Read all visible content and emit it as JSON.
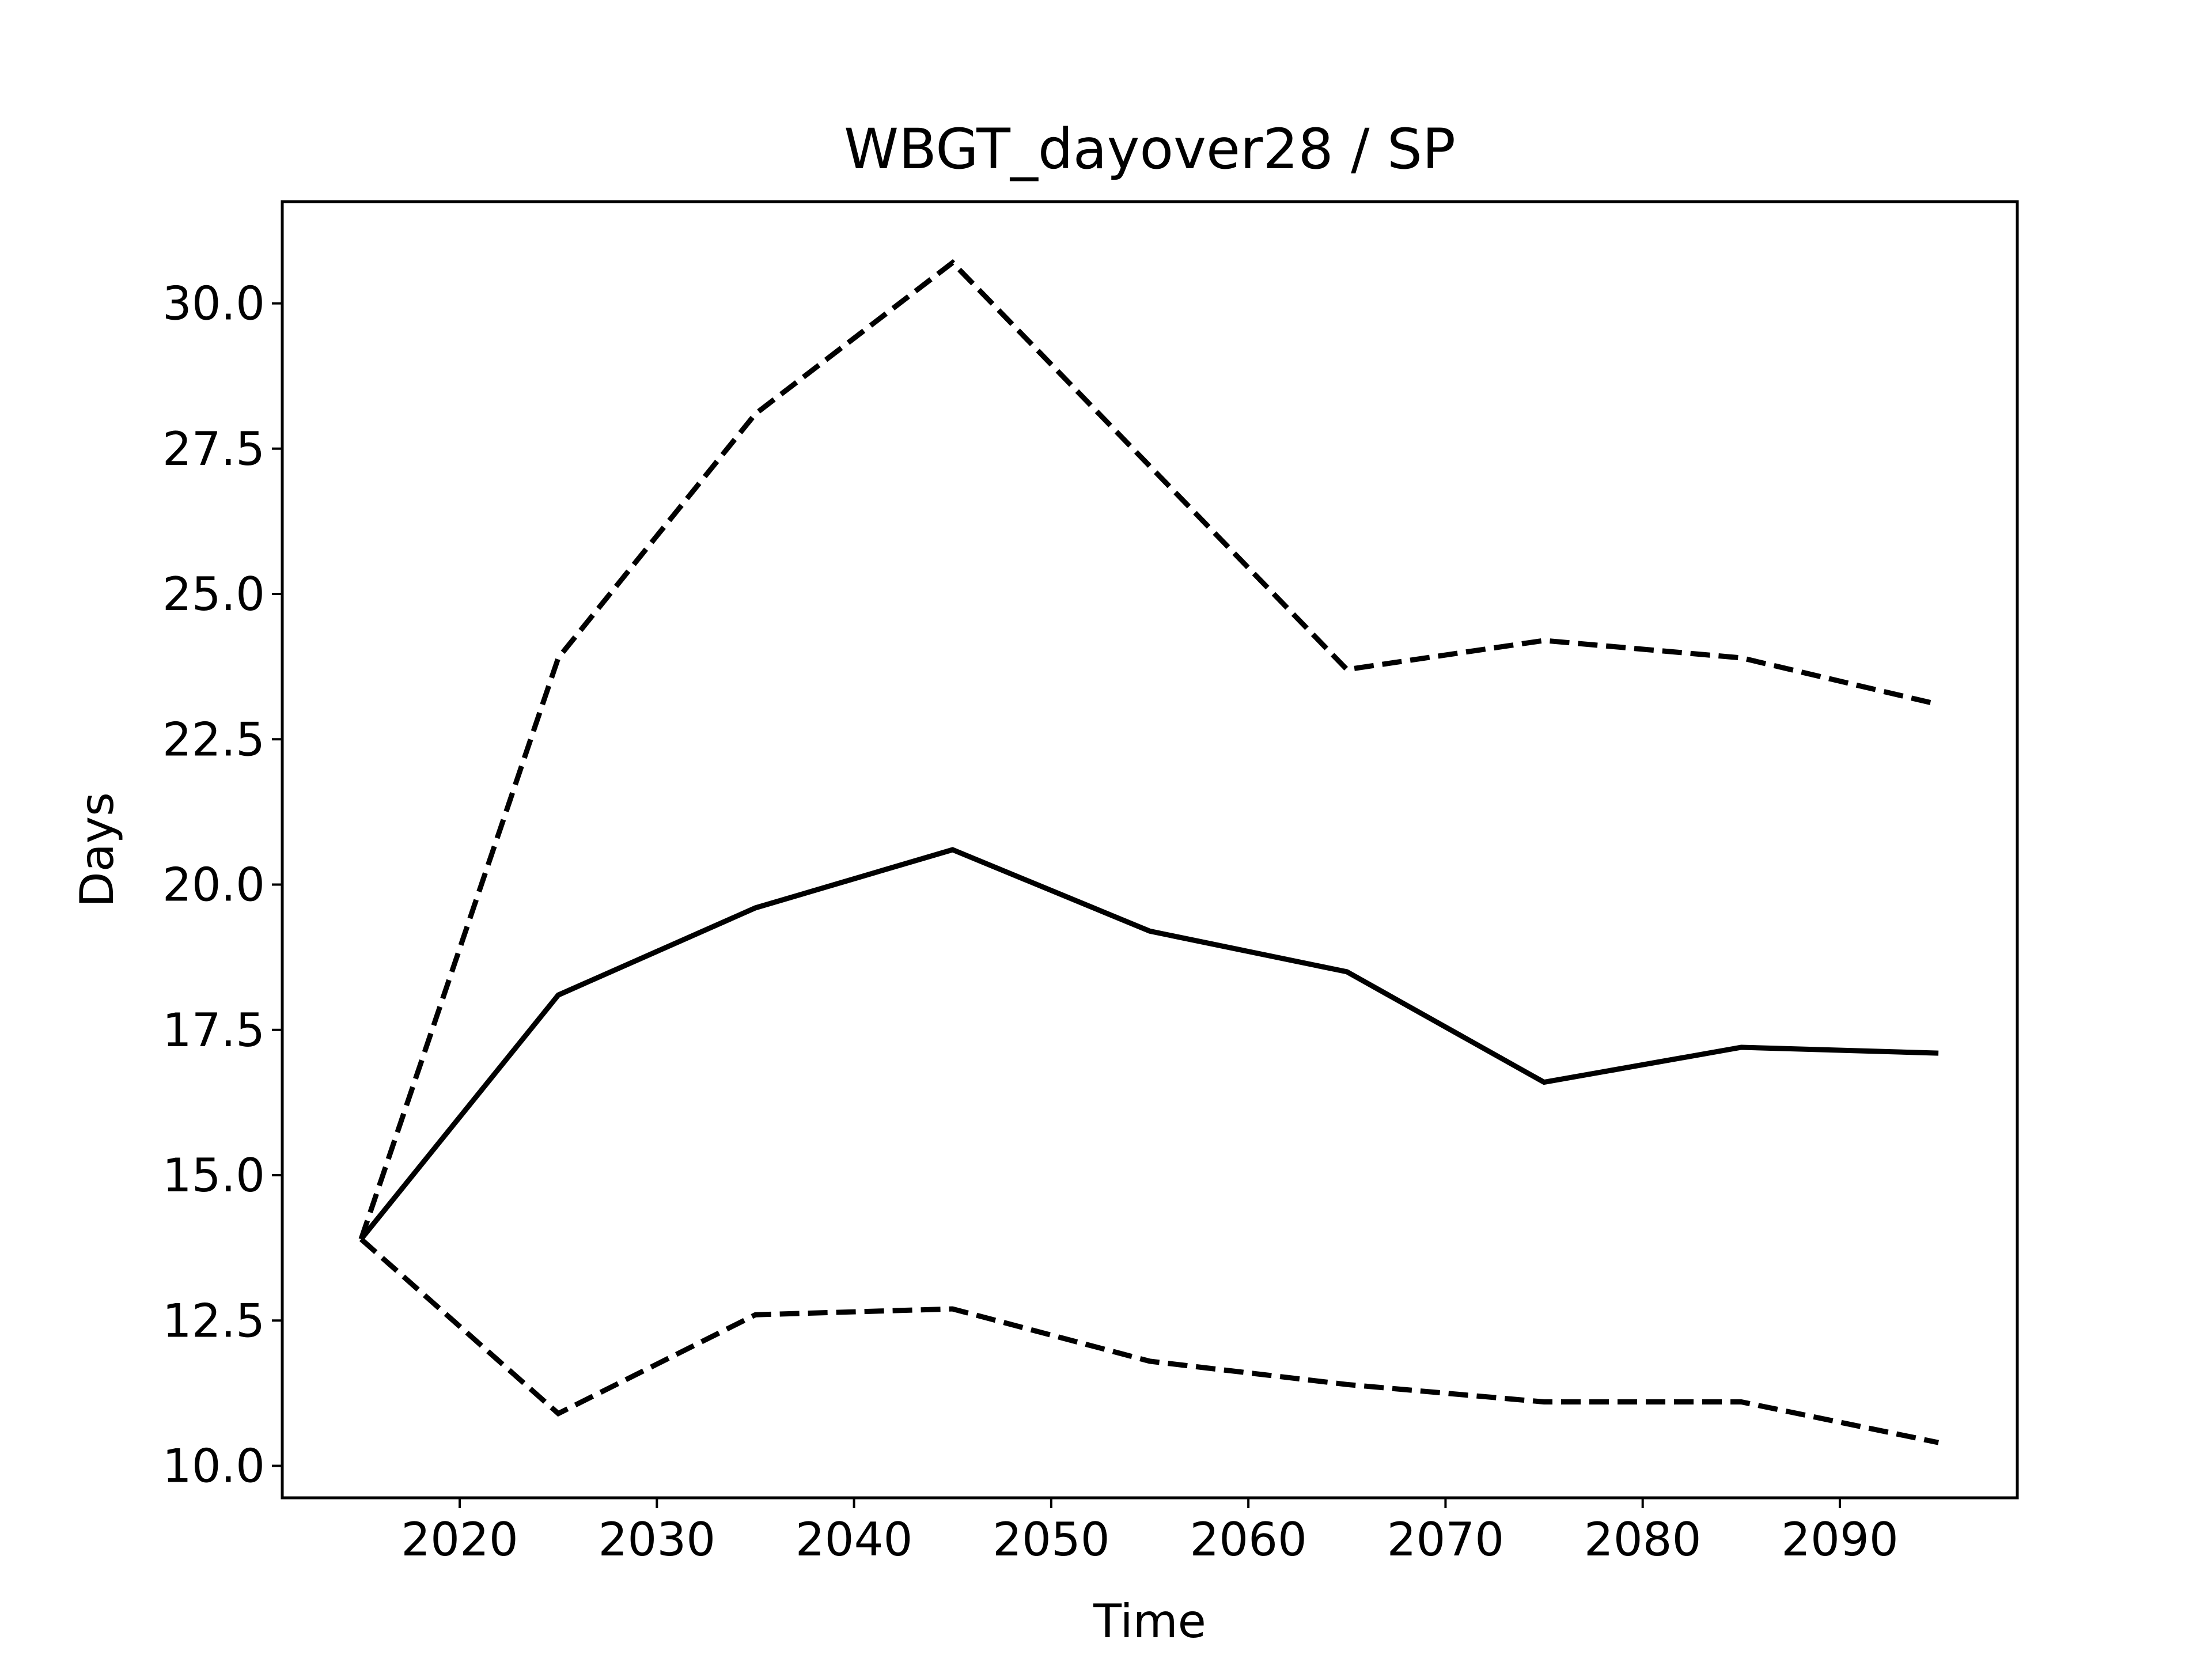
{
  "chart_data": {
    "type": "line",
    "title": "WBGT_dayover28 / SP",
    "xlabel": "Time",
    "ylabel": "Days",
    "xlim": [
      2011,
      2099
    ],
    "ylim": [
      9.45,
      31.75
    ],
    "xticks": [
      2020,
      2030,
      2040,
      2050,
      2060,
      2070,
      2080,
      2090
    ],
    "yticks": [
      10.0,
      12.5,
      15.0,
      17.5,
      20.0,
      22.5,
      25.0,
      27.5,
      30.0
    ],
    "ytick_labels": [
      "10.0",
      "12.5",
      "15.0",
      "17.5",
      "20.0",
      "22.5",
      "25.0",
      "27.5",
      "30.0"
    ],
    "xtick_labels": [
      "2020",
      "2030",
      "2040",
      "2050",
      "2060",
      "2070",
      "2080",
      "2090"
    ],
    "grid": false,
    "x": [
      2015,
      2025,
      2035,
      2045,
      2055,
      2065,
      2075,
      2085,
      2095
    ],
    "series": [
      {
        "style": "solid",
        "color": "#000000",
        "values": [
          13.9,
          18.1,
          19.6,
          20.6,
          19.2,
          18.5,
          16.6,
          17.2,
          17.1
        ]
      },
      {
        "style": "dashed",
        "color": "#000000",
        "values": [
          13.9,
          23.9,
          28.1,
          30.7,
          27.2,
          23.7,
          24.2,
          23.9,
          23.1
        ]
      },
      {
        "style": "dashed",
        "color": "#000000",
        "values": [
          13.9,
          10.9,
          12.6,
          12.7,
          11.8,
          11.4,
          11.1,
          11.1,
          10.4
        ]
      }
    ]
  }
}
